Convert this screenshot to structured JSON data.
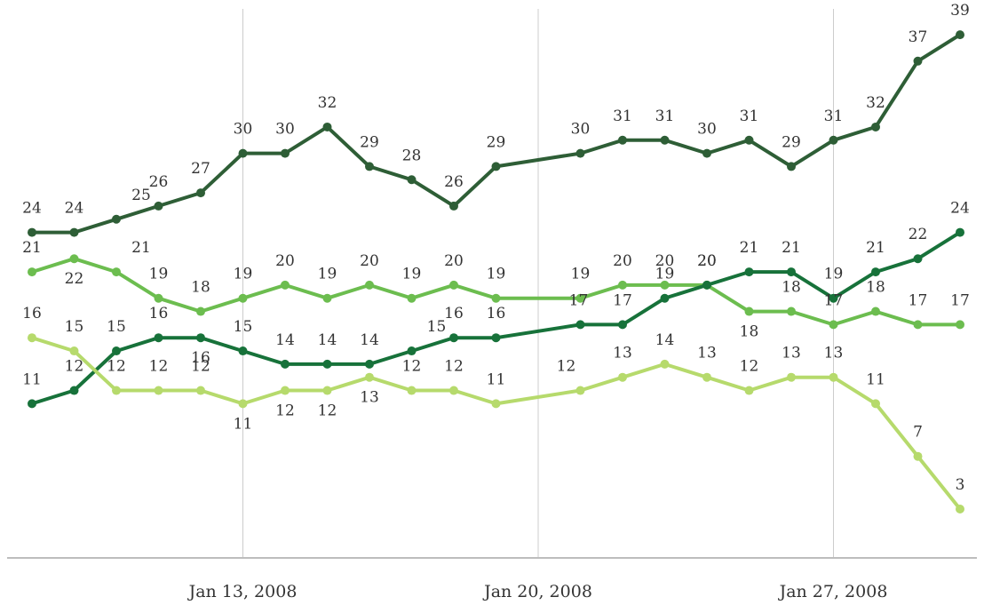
{
  "chart_data": {
    "type": "line",
    "title": "",
    "xlabel": "",
    "ylabel": "",
    "x_start": "Jan 8, 2008",
    "x_end": "Jan 31, 2008",
    "x_ticks": [
      {
        "date": "2008-01-13",
        "label": "Jan 13, 2008"
      },
      {
        "date": "2008-01-20",
        "label": "Jan 20, 2008"
      },
      {
        "date": "2008-01-27",
        "label": "Jan 27, 2008"
      }
    ],
    "ylim": [
      0,
      40
    ],
    "grid": "vertical",
    "legend": "none",
    "series": [
      {
        "color": "#2e5e36",
        "points": [
          [
            "2008-01-08",
            24
          ],
          [
            "2008-01-09",
            24
          ],
          [
            "2008-01-10",
            25
          ],
          [
            "2008-01-11",
            26
          ],
          [
            "2008-01-12",
            27
          ],
          [
            "2008-01-13",
            30
          ],
          [
            "2008-01-14",
            30
          ],
          [
            "2008-01-15",
            32
          ],
          [
            "2008-01-16",
            29
          ],
          [
            "2008-01-17",
            28
          ],
          [
            "2008-01-18",
            26
          ],
          [
            "2008-01-19",
            29
          ],
          [
            "2008-01-21",
            30
          ],
          [
            "2008-01-22",
            31
          ],
          [
            "2008-01-23",
            31
          ],
          [
            "2008-01-24",
            30
          ],
          [
            "2008-01-25",
            31
          ],
          [
            "2008-01-26",
            29
          ],
          [
            "2008-01-27",
            31
          ],
          [
            "2008-01-28",
            32
          ],
          [
            "2008-01-29",
            37
          ],
          [
            "2008-01-30",
            39
          ]
        ]
      },
      {
        "color": "#6cbd4f",
        "points": [
          [
            "2008-01-08",
            21
          ],
          [
            "2008-01-09",
            22
          ],
          [
            "2008-01-10",
            21
          ],
          [
            "2008-01-11",
            19
          ],
          [
            "2008-01-12",
            18
          ],
          [
            "2008-01-13",
            19
          ],
          [
            "2008-01-14",
            20
          ],
          [
            "2008-01-15",
            19
          ],
          [
            "2008-01-16",
            20
          ],
          [
            "2008-01-17",
            19
          ],
          [
            "2008-01-18",
            20
          ],
          [
            "2008-01-19",
            19
          ],
          [
            "2008-01-21",
            19
          ],
          [
            "2008-01-22",
            20
          ],
          [
            "2008-01-23",
            20
          ],
          [
            "2008-01-24",
            20
          ],
          [
            "2008-01-25",
            18
          ],
          [
            "2008-01-26",
            18
          ],
          [
            "2008-01-27",
            17
          ],
          [
            "2008-01-28",
            18
          ],
          [
            "2008-01-29",
            17
          ],
          [
            "2008-01-30",
            17
          ]
        ]
      },
      {
        "color": "#17723a",
        "points": [
          [
            "2008-01-08",
            11
          ],
          [
            "2008-01-09",
            12
          ],
          [
            "2008-01-10",
            15
          ],
          [
            "2008-01-11",
            16
          ],
          [
            "2008-01-12",
            16
          ],
          [
            "2008-01-13",
            15
          ],
          [
            "2008-01-14",
            14
          ],
          [
            "2008-01-15",
            14
          ],
          [
            "2008-01-16",
            14
          ],
          [
            "2008-01-17",
            15
          ],
          [
            "2008-01-18",
            16
          ],
          [
            "2008-01-19",
            16
          ],
          [
            "2008-01-21",
            17
          ],
          [
            "2008-01-22",
            17
          ],
          [
            "2008-01-23",
            19
          ],
          [
            "2008-01-24",
            20
          ],
          [
            "2008-01-25",
            21
          ],
          [
            "2008-01-26",
            21
          ],
          [
            "2008-01-27",
            19
          ],
          [
            "2008-01-28",
            21
          ],
          [
            "2008-01-29",
            22
          ],
          [
            "2008-01-30",
            24
          ]
        ]
      },
      {
        "color": "#b6da6c",
        "points": [
          [
            "2008-01-08",
            16
          ],
          [
            "2008-01-09",
            15
          ],
          [
            "2008-01-10",
            12
          ],
          [
            "2008-01-11",
            12
          ],
          [
            "2008-01-12",
            12
          ],
          [
            "2008-01-13",
            11
          ],
          [
            "2008-01-14",
            12
          ],
          [
            "2008-01-15",
            12
          ],
          [
            "2008-01-16",
            13
          ],
          [
            "2008-01-17",
            12
          ],
          [
            "2008-01-18",
            12
          ],
          [
            "2008-01-19",
            11
          ],
          [
            "2008-01-21",
            12
          ],
          [
            "2008-01-22",
            13
          ],
          [
            "2008-01-23",
            14
          ],
          [
            "2008-01-24",
            13
          ],
          [
            "2008-01-25",
            12
          ],
          [
            "2008-01-26",
            13
          ],
          [
            "2008-01-27",
            13
          ],
          [
            "2008-01-28",
            11
          ],
          [
            "2008-01-29",
            7
          ],
          [
            "2008-01-30",
            3
          ]
        ]
      }
    ]
  }
}
